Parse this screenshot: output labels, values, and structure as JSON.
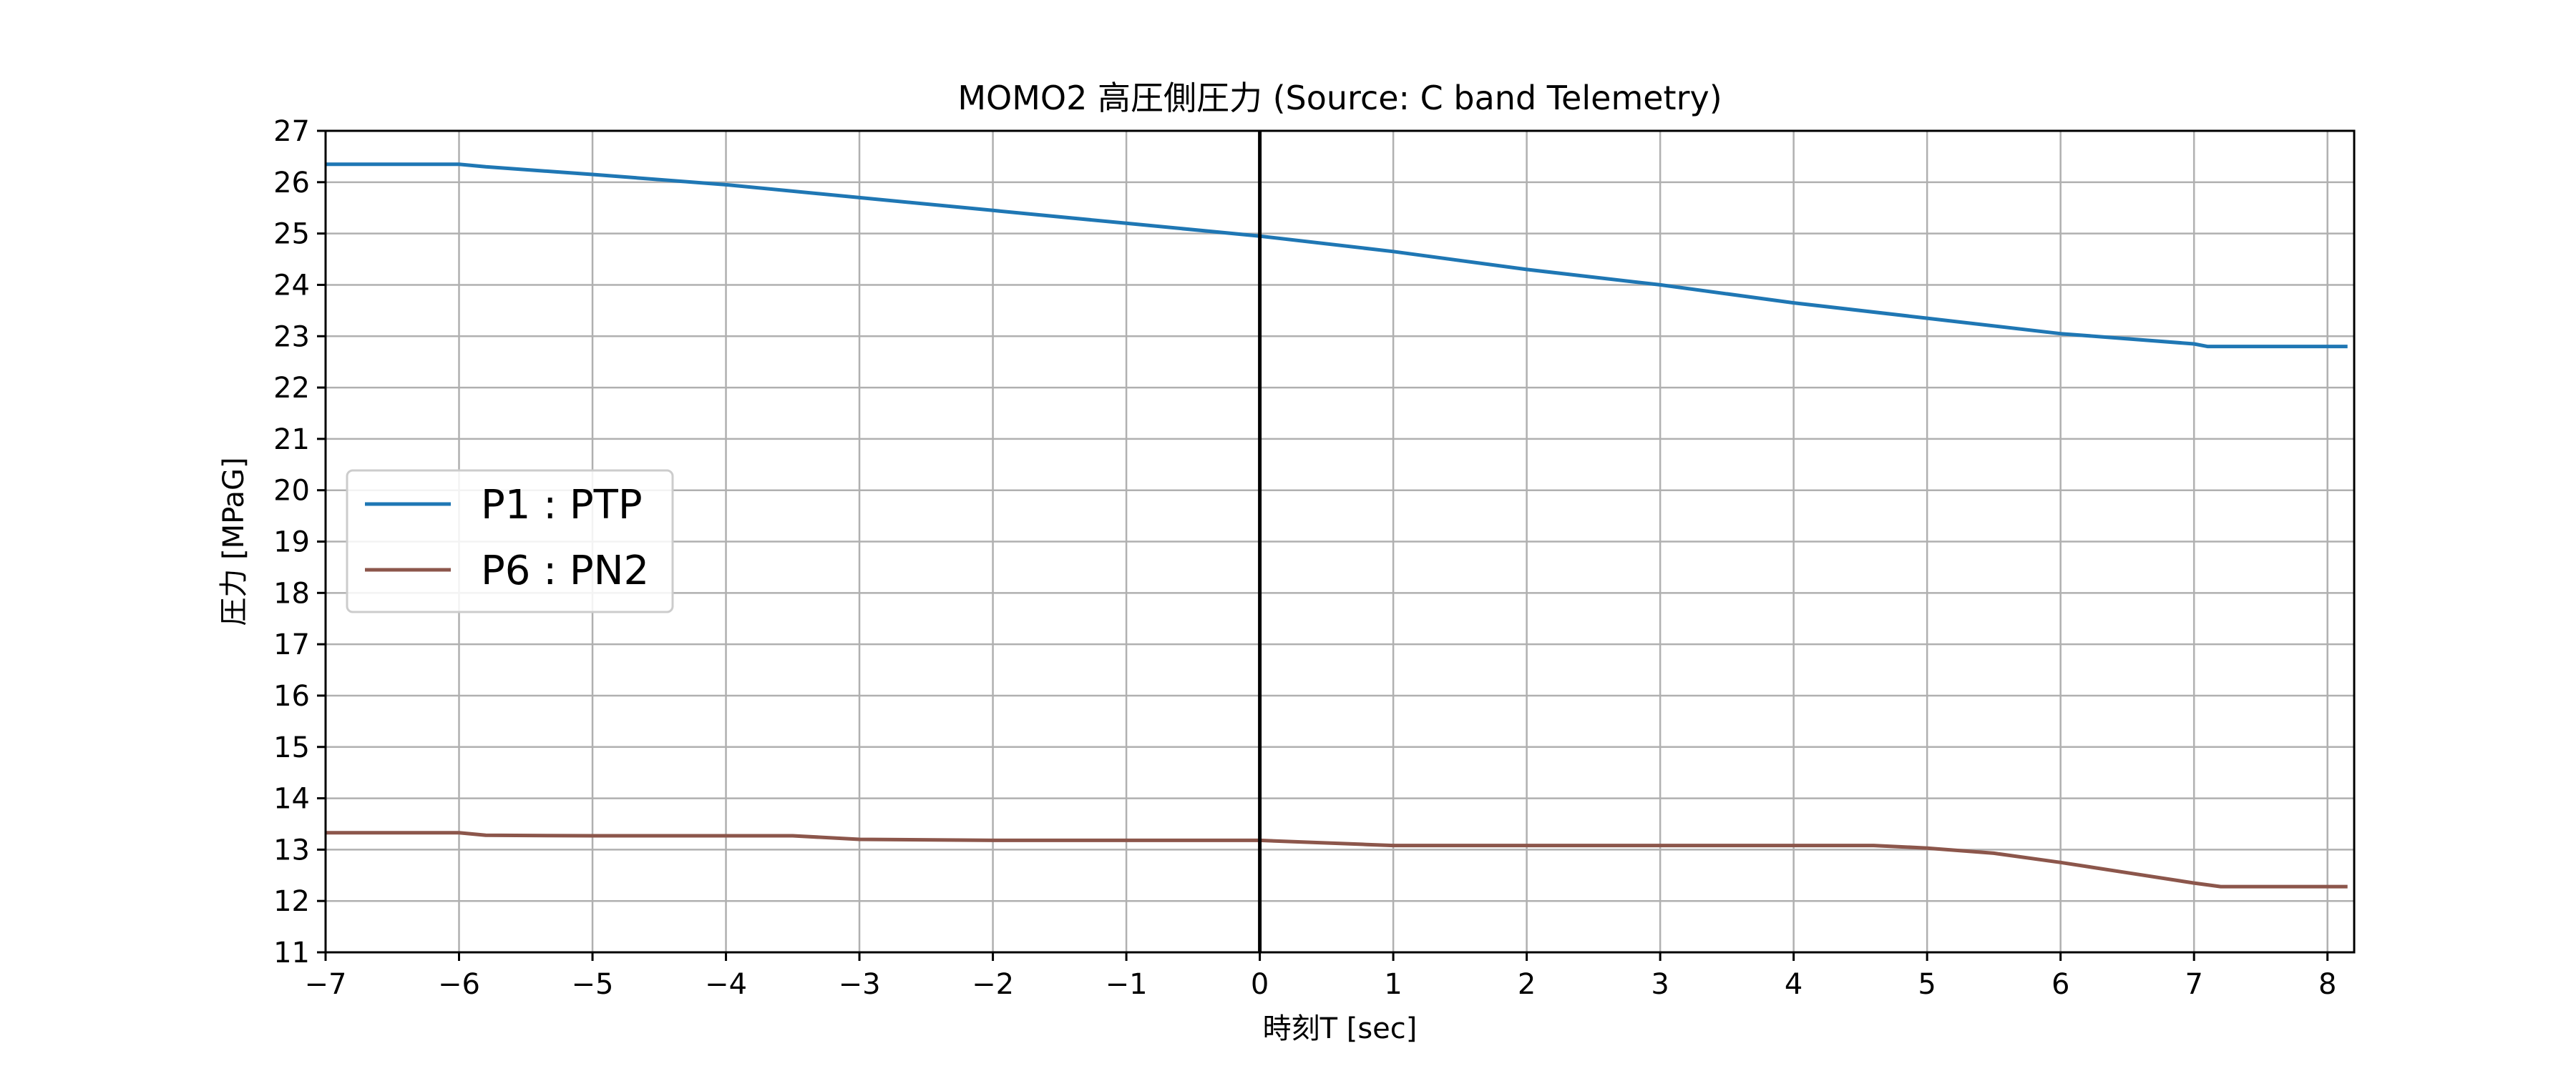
{
  "chart_data": {
    "type": "line",
    "title": "MOMO2 高圧側圧力 (Source: C band Telemetry)",
    "xlabel": "時刻T [sec]",
    "ylabel": "圧力 [MPaG]",
    "xlim": [
      -7,
      8.2
    ],
    "ylim": [
      11,
      27
    ],
    "xticks": [
      -7,
      -6,
      -5,
      -4,
      -3,
      -2,
      -1,
      0,
      1,
      2,
      3,
      4,
      5,
      6,
      7,
      8
    ],
    "xtick_labels": [
      "−7",
      "−6",
      "−5",
      "−4",
      "−3",
      "−2",
      "−1",
      "0",
      "1",
      "2",
      "3",
      "4",
      "5",
      "6",
      "7",
      "8"
    ],
    "yticks": [
      11,
      12,
      13,
      14,
      15,
      16,
      17,
      18,
      19,
      20,
      21,
      22,
      23,
      24,
      25,
      26,
      27
    ],
    "ytick_labels": [
      "11",
      "12",
      "13",
      "14",
      "15",
      "16",
      "17",
      "18",
      "19",
      "20",
      "21",
      "22",
      "23",
      "24",
      "25",
      "26",
      "27"
    ],
    "grid": true,
    "legend_position": "center-left",
    "reference_line": {
      "x": 0,
      "color": "#000000"
    },
    "series": [
      {
        "name": "P1 : PTP",
        "color": "#1f77b4",
        "x": [
          -7,
          -6.0,
          -5.8,
          -5,
          -4,
          -3,
          -2,
          -1,
          0,
          1,
          2,
          3,
          4,
          5,
          6,
          7.0,
          7.1,
          8.15
        ],
        "y": [
          26.35,
          26.35,
          26.3,
          26.15,
          25.95,
          25.7,
          25.45,
          25.2,
          24.95,
          24.65,
          24.3,
          24.0,
          23.65,
          23.35,
          23.05,
          22.85,
          22.8,
          22.8
        ]
      },
      {
        "name": "P6 : PN2",
        "color": "#8c564b",
        "x": [
          -7,
          -6.0,
          -5.8,
          -5,
          -4,
          -3.5,
          -3,
          -2,
          -1,
          0,
          0.8,
          1,
          2,
          3,
          4,
          4.6,
          5.0,
          5.5,
          6.0,
          6.5,
          7.0,
          7.2,
          8.15
        ],
        "y": [
          13.33,
          13.33,
          13.28,
          13.27,
          13.27,
          13.27,
          13.2,
          13.18,
          13.18,
          13.18,
          13.1,
          13.08,
          13.08,
          13.08,
          13.08,
          13.08,
          13.03,
          12.93,
          12.75,
          12.55,
          12.35,
          12.28,
          12.28
        ]
      }
    ]
  }
}
